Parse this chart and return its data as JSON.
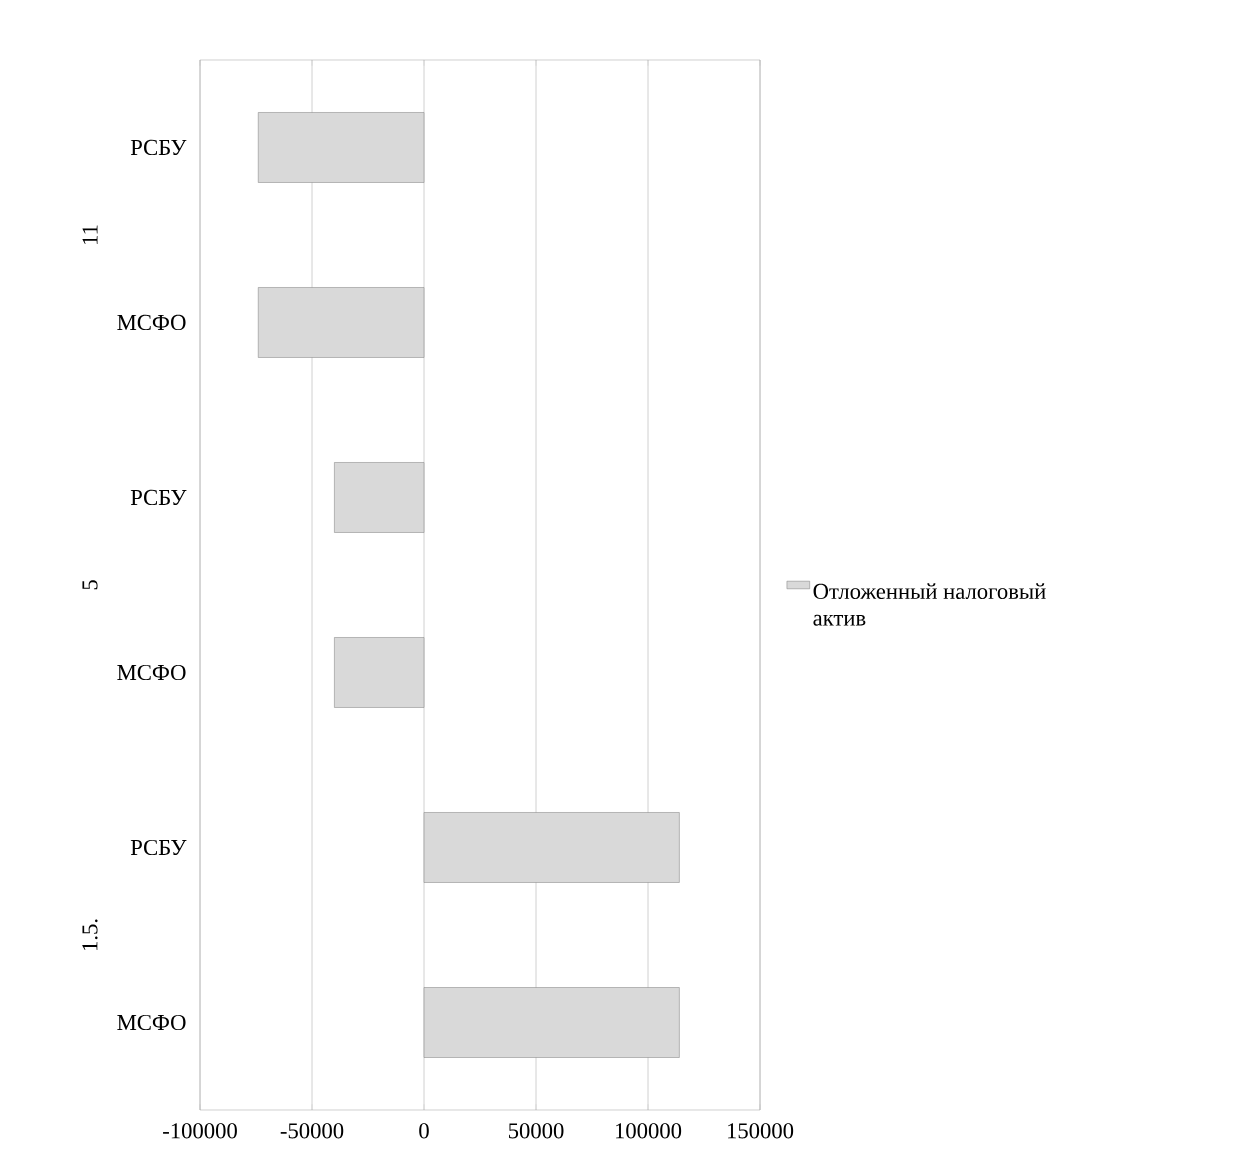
{
  "chart_data": {
    "type": "bar",
    "orientation": "horizontal",
    "categories": [
      "РСБУ",
      "МСФО",
      "РСБУ",
      "МСФО",
      "РСБУ",
      "МСФО"
    ],
    "series": [
      {
        "name": "Отложенный налоговый актив",
        "color": "#d9d9d9",
        "values": [
          -74000,
          -74000,
          -40000,
          -40000,
          114000,
          114000
        ]
      }
    ],
    "annotations": [
      "11",
      "5",
      "1.5."
    ],
    "xlim": [
      -100000,
      150000
    ],
    "xticks": [
      -100000,
      -50000,
      0,
      50000,
      100000,
      150000
    ],
    "grid": "x",
    "legend": "right"
  }
}
